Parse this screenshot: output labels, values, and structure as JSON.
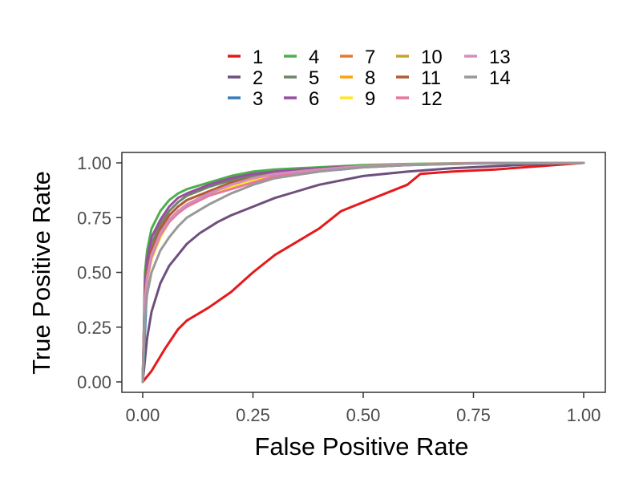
{
  "chart_data": {
    "type": "line",
    "xlabel": "False Positive Rate",
    "ylabel": "True Positive Rate",
    "xlim": [
      0,
      1
    ],
    "ylim": [
      0,
      1
    ],
    "x_ticks": [
      "0.00",
      "0.25",
      "0.50",
      "0.75",
      "1.00"
    ],
    "y_ticks": [
      "0.00",
      "0.25",
      "0.50",
      "0.75",
      "1.00"
    ],
    "grid": false,
    "legend_position": "top",
    "series": [
      {
        "name": "1",
        "color": "#E41A1C",
        "points": [
          [
            0,
            0
          ],
          [
            0.02,
            0.05
          ],
          [
            0.05,
            0.15
          ],
          [
            0.08,
            0.24
          ],
          [
            0.1,
            0.28
          ],
          [
            0.15,
            0.34
          ],
          [
            0.2,
            0.41
          ],
          [
            0.25,
            0.5
          ],
          [
            0.3,
            0.58
          ],
          [
            0.35,
            0.64
          ],
          [
            0.4,
            0.7
          ],
          [
            0.45,
            0.78
          ],
          [
            0.5,
            0.82
          ],
          [
            0.55,
            0.86
          ],
          [
            0.6,
            0.9
          ],
          [
            0.63,
            0.95
          ],
          [
            0.7,
            0.96
          ],
          [
            0.8,
            0.97
          ],
          [
            0.9,
            0.985
          ],
          [
            1,
            1
          ]
        ]
      },
      {
        "name": "2",
        "color": "#6E4F7E",
        "points": [
          [
            0,
            0
          ],
          [
            0.01,
            0.2
          ],
          [
            0.02,
            0.32
          ],
          [
            0.04,
            0.45
          ],
          [
            0.06,
            0.53
          ],
          [
            0.08,
            0.58
          ],
          [
            0.1,
            0.63
          ],
          [
            0.13,
            0.68
          ],
          [
            0.17,
            0.73
          ],
          [
            0.2,
            0.76
          ],
          [
            0.25,
            0.8
          ],
          [
            0.3,
            0.84
          ],
          [
            0.35,
            0.87
          ],
          [
            0.4,
            0.9
          ],
          [
            0.45,
            0.92
          ],
          [
            0.5,
            0.94
          ],
          [
            0.6,
            0.96
          ],
          [
            0.7,
            0.975
          ],
          [
            0.8,
            0.985
          ],
          [
            0.9,
            0.995
          ],
          [
            1,
            1
          ]
        ]
      },
      {
        "name": "3",
        "color": "#377EB8",
        "points": [
          [
            0,
            0
          ],
          [
            0.01,
            0.45
          ],
          [
            0.02,
            0.58
          ],
          [
            0.04,
            0.68
          ],
          [
            0.06,
            0.74
          ],
          [
            0.1,
            0.8
          ],
          [
            0.15,
            0.86
          ],
          [
            0.2,
            0.9
          ],
          [
            0.25,
            0.93
          ],
          [
            0.3,
            0.95
          ],
          [
            0.35,
            0.96
          ],
          [
            0.4,
            0.965
          ],
          [
            0.45,
            0.97
          ],
          [
            0.5,
            0.98
          ],
          [
            0.6,
            0.99
          ],
          [
            0.75,
            0.998
          ],
          [
            1,
            1
          ]
        ]
      },
      {
        "name": "4",
        "color": "#4DAF4A",
        "points": [
          [
            0,
            0
          ],
          [
            0.005,
            0.5
          ],
          [
            0.01,
            0.6
          ],
          [
            0.02,
            0.7
          ],
          [
            0.04,
            0.78
          ],
          [
            0.06,
            0.83
          ],
          [
            0.08,
            0.86
          ],
          [
            0.1,
            0.88
          ],
          [
            0.15,
            0.91
          ],
          [
            0.2,
            0.94
          ],
          [
            0.25,
            0.96
          ],
          [
            0.3,
            0.97
          ],
          [
            0.4,
            0.98
          ],
          [
            0.5,
            0.99
          ],
          [
            0.6,
            0.995
          ],
          [
            0.75,
            0.999
          ],
          [
            1,
            1
          ]
        ]
      },
      {
        "name": "5",
        "color": "#6F8469",
        "points": [
          [
            0,
            0
          ],
          [
            0.005,
            0.42
          ],
          [
            0.01,
            0.53
          ],
          [
            0.02,
            0.63
          ],
          [
            0.04,
            0.72
          ],
          [
            0.06,
            0.78
          ],
          [
            0.08,
            0.82
          ],
          [
            0.1,
            0.85
          ],
          [
            0.15,
            0.89
          ],
          [
            0.2,
            0.92
          ],
          [
            0.25,
            0.94
          ],
          [
            0.3,
            0.96
          ],
          [
            0.4,
            0.975
          ],
          [
            0.5,
            0.985
          ],
          [
            0.6,
            0.993
          ],
          [
            0.75,
            0.998
          ],
          [
            1,
            1
          ]
        ]
      },
      {
        "name": "6",
        "color": "#984EA3",
        "points": [
          [
            0,
            0
          ],
          [
            0.005,
            0.45
          ],
          [
            0.01,
            0.56
          ],
          [
            0.02,
            0.66
          ],
          [
            0.04,
            0.74
          ],
          [
            0.06,
            0.8
          ],
          [
            0.08,
            0.84
          ],
          [
            0.1,
            0.86
          ],
          [
            0.15,
            0.9
          ],
          [
            0.2,
            0.93
          ],
          [
            0.25,
            0.95
          ],
          [
            0.3,
            0.96
          ],
          [
            0.4,
            0.975
          ],
          [
            0.5,
            0.985
          ],
          [
            0.6,
            0.993
          ],
          [
            0.75,
            0.998
          ],
          [
            1,
            1
          ]
        ]
      },
      {
        "name": "7",
        "color": "#E8762C",
        "points": [
          [
            0,
            0
          ],
          [
            0.005,
            0.4
          ],
          [
            0.01,
            0.5
          ],
          [
            0.02,
            0.6
          ],
          [
            0.04,
            0.7
          ],
          [
            0.06,
            0.76
          ],
          [
            0.08,
            0.8
          ],
          [
            0.1,
            0.83
          ],
          [
            0.15,
            0.87
          ],
          [
            0.2,
            0.91
          ],
          [
            0.25,
            0.93
          ],
          [
            0.3,
            0.95
          ],
          [
            0.4,
            0.97
          ],
          [
            0.5,
            0.985
          ],
          [
            0.6,
            0.993
          ],
          [
            0.75,
            0.998
          ],
          [
            1,
            1
          ]
        ]
      },
      {
        "name": "8",
        "color": "#FF9F10",
        "points": [
          [
            0,
            0
          ],
          [
            0.005,
            0.38
          ],
          [
            0.01,
            0.48
          ],
          [
            0.02,
            0.58
          ],
          [
            0.04,
            0.68
          ],
          [
            0.06,
            0.74
          ],
          [
            0.08,
            0.78
          ],
          [
            0.1,
            0.81
          ],
          [
            0.15,
            0.86
          ],
          [
            0.2,
            0.9
          ],
          [
            0.25,
            0.93
          ],
          [
            0.3,
            0.95
          ],
          [
            0.4,
            0.97
          ],
          [
            0.5,
            0.985
          ],
          [
            0.6,
            0.993
          ],
          [
            0.75,
            0.998
          ],
          [
            1,
            1
          ]
        ]
      },
      {
        "name": "9",
        "color": "#FFE528",
        "points": [
          [
            0,
            0
          ],
          [
            0.005,
            0.36
          ],
          [
            0.01,
            0.46
          ],
          [
            0.02,
            0.56
          ],
          [
            0.04,
            0.66
          ],
          [
            0.06,
            0.73
          ],
          [
            0.08,
            0.77
          ],
          [
            0.1,
            0.8
          ],
          [
            0.15,
            0.85
          ],
          [
            0.2,
            0.89
          ],
          [
            0.25,
            0.92
          ],
          [
            0.3,
            0.945
          ],
          [
            0.4,
            0.97
          ],
          [
            0.5,
            0.985
          ],
          [
            0.6,
            0.993
          ],
          [
            0.75,
            0.998
          ],
          [
            1,
            1
          ]
        ]
      },
      {
        "name": "10",
        "color": "#C9A22A",
        "points": [
          [
            0,
            0
          ],
          [
            0.005,
            0.38
          ],
          [
            0.01,
            0.48
          ],
          [
            0.02,
            0.58
          ],
          [
            0.04,
            0.68
          ],
          [
            0.06,
            0.74
          ],
          [
            0.08,
            0.78
          ],
          [
            0.1,
            0.81
          ],
          [
            0.15,
            0.86
          ],
          [
            0.2,
            0.9
          ],
          [
            0.25,
            0.93
          ],
          [
            0.3,
            0.95
          ],
          [
            0.4,
            0.97
          ],
          [
            0.5,
            0.985
          ],
          [
            0.6,
            0.993
          ],
          [
            0.75,
            0.998
          ],
          [
            1,
            1
          ]
        ]
      },
      {
        "name": "11",
        "color": "#B15B36",
        "points": [
          [
            0,
            0
          ],
          [
            0.005,
            0.4
          ],
          [
            0.01,
            0.5
          ],
          [
            0.02,
            0.6
          ],
          [
            0.04,
            0.7
          ],
          [
            0.06,
            0.76
          ],
          [
            0.08,
            0.8
          ],
          [
            0.1,
            0.83
          ],
          [
            0.15,
            0.87
          ],
          [
            0.2,
            0.91
          ],
          [
            0.25,
            0.93
          ],
          [
            0.3,
            0.95
          ],
          [
            0.4,
            0.97
          ],
          [
            0.5,
            0.985
          ],
          [
            0.6,
            0.993
          ],
          [
            0.75,
            0.998
          ],
          [
            1,
            1
          ]
        ]
      },
      {
        "name": "12",
        "color": "#E7779E",
        "points": [
          [
            0,
            0
          ],
          [
            0.005,
            0.37
          ],
          [
            0.01,
            0.47
          ],
          [
            0.02,
            0.57
          ],
          [
            0.04,
            0.67
          ],
          [
            0.06,
            0.73
          ],
          [
            0.08,
            0.77
          ],
          [
            0.1,
            0.8
          ],
          [
            0.15,
            0.85
          ],
          [
            0.2,
            0.88
          ],
          [
            0.25,
            0.91
          ],
          [
            0.3,
            0.94
          ],
          [
            0.4,
            0.965
          ],
          [
            0.5,
            0.98
          ],
          [
            0.6,
            0.99
          ],
          [
            0.75,
            0.997
          ],
          [
            1,
            1
          ]
        ]
      },
      {
        "name": "13",
        "color": "#D38DC0",
        "points": [
          [
            0,
            0
          ],
          [
            0.005,
            0.38
          ],
          [
            0.01,
            0.48
          ],
          [
            0.02,
            0.58
          ],
          [
            0.04,
            0.68
          ],
          [
            0.06,
            0.74
          ],
          [
            0.08,
            0.78
          ],
          [
            0.1,
            0.81
          ],
          [
            0.15,
            0.86
          ],
          [
            0.2,
            0.9
          ],
          [
            0.25,
            0.93
          ],
          [
            0.3,
            0.95
          ],
          [
            0.4,
            0.97
          ],
          [
            0.5,
            0.985
          ],
          [
            0.6,
            0.993
          ],
          [
            0.75,
            0.998
          ],
          [
            1,
            1
          ]
        ]
      },
      {
        "name": "14",
        "color": "#999999",
        "points": [
          [
            0,
            0
          ],
          [
            0.005,
            0.3
          ],
          [
            0.01,
            0.4
          ],
          [
            0.02,
            0.5
          ],
          [
            0.04,
            0.6
          ],
          [
            0.06,
            0.66
          ],
          [
            0.08,
            0.71
          ],
          [
            0.1,
            0.75
          ],
          [
            0.15,
            0.81
          ],
          [
            0.2,
            0.86
          ],
          [
            0.25,
            0.9
          ],
          [
            0.3,
            0.93
          ],
          [
            0.4,
            0.96
          ],
          [
            0.5,
            0.98
          ],
          [
            0.6,
            0.99
          ],
          [
            0.75,
            0.997
          ],
          [
            1,
            1
          ]
        ]
      }
    ]
  }
}
